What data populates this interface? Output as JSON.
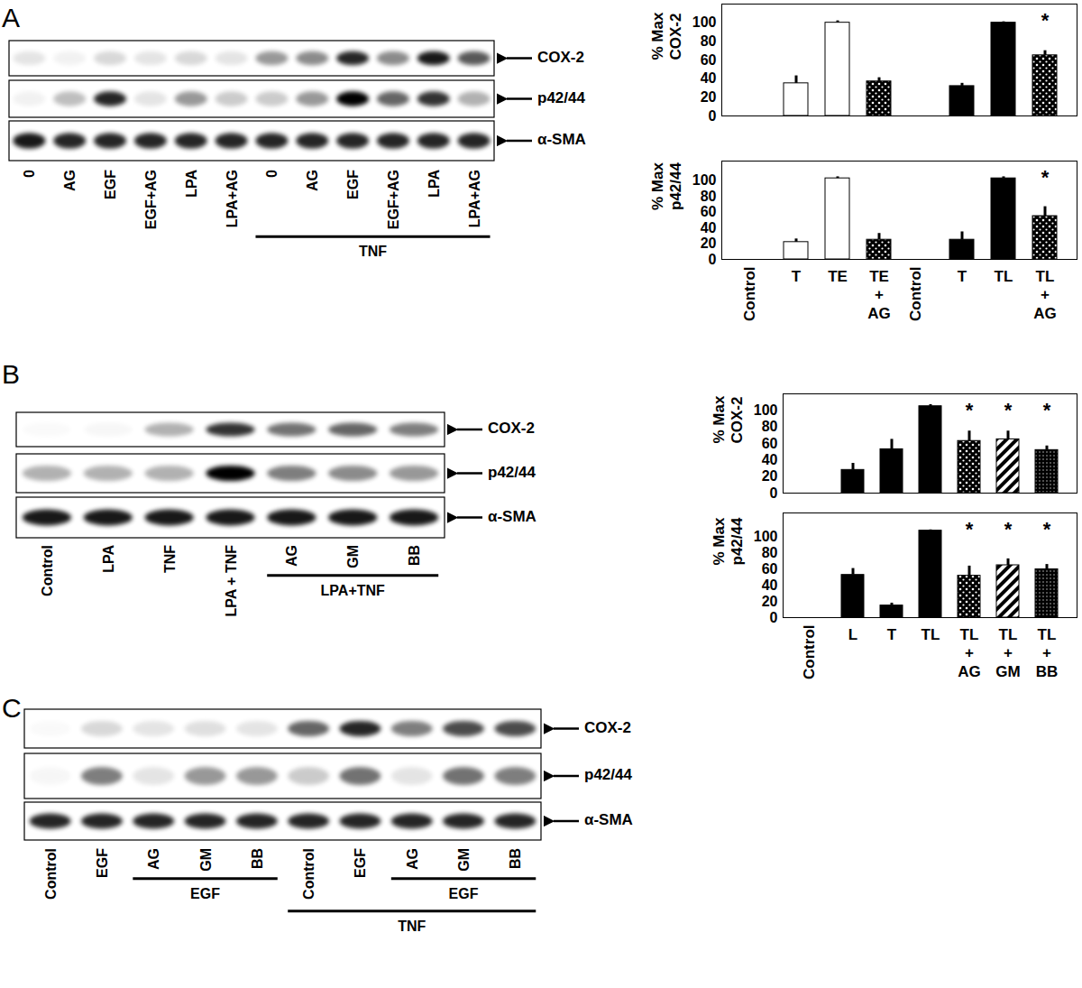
{
  "chart_data": [
    {
      "type": "bar",
      "ylabel": "% Max\nCOX-2",
      "categories": [
        "Control",
        "T",
        "TE",
        "TE\n+\nAG",
        "Control",
        "T",
        "TL",
        "TL\n+\nAG"
      ],
      "values": [
        0,
        35,
        100,
        37,
        0,
        32,
        100,
        65
      ],
      "errors": [
        null,
        8,
        2,
        4,
        null,
        3,
        1,
        5
      ],
      "colors": [
        "white",
        "white",
        "white",
        "url(#dots)",
        "black",
        "black",
        "black",
        "url(#dots)"
      ],
      "annotations": [
        null,
        null,
        null,
        null,
        null,
        null,
        null,
        "*"
      ],
      "ylim": [
        0,
        120
      ],
      "yticks": [
        0,
        20,
        40,
        60,
        80,
        100
      ],
      "tick_labels": "y"
    },
    {
      "type": "bar",
      "ylabel": "% Max\np42/44",
      "categories": [
        "Control",
        "T",
        "TE",
        "TE\n+\nAG",
        "Control",
        "T",
        "TL",
        "TL\n+\nAG"
      ],
      "values": [
        0,
        22,
        103,
        25,
        0,
        25,
        103,
        55
      ],
      "errors": [
        null,
        4,
        2,
        8,
        null,
        10,
        2,
        12
      ],
      "colors": [
        "white",
        "white",
        "white",
        "url(#dots)",
        "black",
        "black",
        "black",
        "url(#dots)"
      ],
      "annotations": [
        null,
        null,
        null,
        null,
        null,
        null,
        null,
        "*"
      ],
      "ylim": [
        0,
        125
      ],
      "yticks": [
        0,
        20,
        40,
        60,
        80,
        100
      ]
    },
    {
      "type": "bar",
      "ylabel": "% Max\nCOX-2",
      "categories": [
        "Control",
        "L",
        "T",
        "TL",
        "TL\n+\nAG",
        "TL\n+\nGM",
        "TL\n+\nBB"
      ],
      "values": [
        0,
        28,
        53,
        105,
        63,
        65,
        52
      ],
      "errors": [
        null,
        8,
        12,
        2,
        12,
        10,
        5
      ],
      "colors": [
        "black",
        "black",
        "black",
        "black",
        "url(#dots)",
        "url(#stripes)",
        "url(#fine)"
      ],
      "annotations": [
        null,
        null,
        null,
        null,
        "*",
        "*",
        "*"
      ],
      "ylim": [
        0,
        120
      ],
      "yticks": [
        0,
        20,
        40,
        60,
        80,
        100
      ],
      "tick_labels": "y"
    },
    {
      "type": "bar",
      "ylabel": "% Max\np42/44",
      "categories": [
        "Control",
        "L",
        "T",
        "TL",
        "TL\n+\nAG",
        "TL\n+\nGM",
        "TL\n+\nBB"
      ],
      "values": [
        0,
        53,
        15,
        108,
        52,
        65,
        60
      ],
      "errors": [
        null,
        8,
        3,
        1,
        12,
        8,
        6
      ],
      "colors": [
        "black",
        "black",
        "black",
        "black",
        "url(#dots)",
        "url(#stripes)",
        "url(#fine)"
      ],
      "annotations": [
        null,
        null,
        null,
        null,
        "*",
        "*",
        "*"
      ],
      "ylim": [
        0,
        130
      ],
      "yticks": [
        0,
        20,
        40,
        60,
        80,
        100
      ]
    }
  ],
  "blots": [
    {
      "panel": "A",
      "lanes": [
        "0",
        "AG",
        "EGF",
        "EGF+AG",
        "LPA",
        "LPA+AG",
        "0",
        "AG",
        "EGF",
        "EGF+AG",
        "LPA",
        "LPA+AG"
      ],
      "rows": [
        {
          "label": "COX-2",
          "bands": [
            0.1,
            0.05,
            0.15,
            0.1,
            0.15,
            0.1,
            0.4,
            0.45,
            0.85,
            0.45,
            0.9,
            0.65
          ]
        },
        {
          "label": "p42/44",
          "bands": [
            0.05,
            0.25,
            0.85,
            0.1,
            0.4,
            0.2,
            0.2,
            0.4,
            1,
            0.6,
            0.8,
            0.3
          ]
        },
        {
          "label": "α-SMA",
          "bands": [
            0.9,
            0.85,
            0.85,
            0.85,
            0.85,
            0.85,
            0.85,
            0.85,
            0.85,
            0.85,
            0.85,
            0.85
          ]
        }
      ],
      "groups": [
        {
          "label": "TNF",
          "from": 6,
          "to": 11
        }
      ]
    },
    {
      "panel": "B",
      "lanes": [
        "Control",
        "LPA",
        "TNF",
        "LPA + TNF",
        "AG",
        "GM",
        "BB"
      ],
      "rows": [
        {
          "label": "COX-2",
          "bands": [
            0.02,
            0.03,
            0.3,
            0.8,
            0.55,
            0.6,
            0.5
          ]
        },
        {
          "label": "p42/44",
          "bands": [
            0.3,
            0.3,
            0.3,
            1,
            0.5,
            0.45,
            0.4
          ]
        },
        {
          "label": "α-SMA",
          "bands": [
            0.9,
            0.9,
            0.9,
            0.9,
            0.9,
            0.9,
            0.9
          ]
        }
      ],
      "groups": [
        {
          "label": "LPA+TNF",
          "from": 4,
          "to": 6
        }
      ]
    },
    {
      "panel": "C",
      "lanes": [
        "Control",
        "EGF",
        "AG",
        "GM",
        "BB",
        "Control",
        "EGF",
        "AG",
        "GM",
        "BB"
      ],
      "rows": [
        {
          "label": "COX-2",
          "bands": [
            0.02,
            0.15,
            0.1,
            0.12,
            0.1,
            0.6,
            0.85,
            0.5,
            0.7,
            0.7
          ]
        },
        {
          "label": "p42/44",
          "bands": [
            0.03,
            0.5,
            0.1,
            0.4,
            0.4,
            0.2,
            0.55,
            0.1,
            0.55,
            0.5
          ]
        },
        {
          "label": "α-SMA",
          "bands": [
            0.85,
            0.85,
            0.85,
            0.85,
            0.85,
            0.85,
            0.85,
            0.85,
            0.85,
            0.85
          ]
        }
      ],
      "groups": [
        {
          "label": "EGF",
          "from": 2,
          "to": 4
        },
        {
          "label": "EGF",
          "from": 7,
          "to": 9
        },
        {
          "label": "TNF",
          "from": 5,
          "to": 9
        }
      ]
    }
  ]
}
